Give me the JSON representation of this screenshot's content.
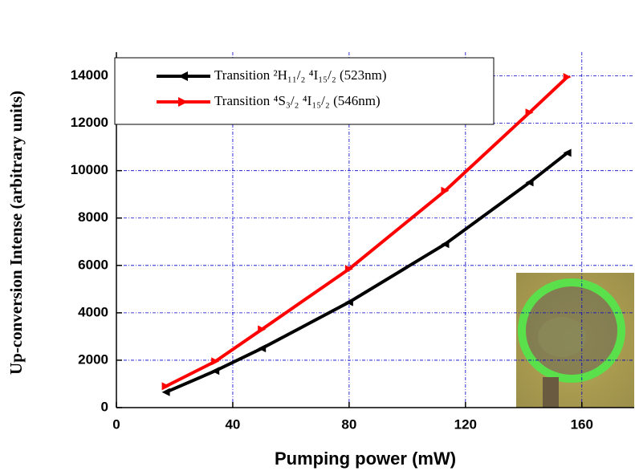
{
  "chart_data": {
    "type": "line",
    "x_label": "Pumping power (mW)",
    "y_label": "Up-conversion Intense (arbitrary units)",
    "xlim": [
      0,
      178
    ],
    "xticks": [
      0,
      40,
      80,
      120,
      160
    ],
    "ylim": [
      0,
      15000
    ],
    "yticks": [
      0,
      2000,
      4000,
      6000,
      8000,
      10000,
      12000,
      14000
    ],
    "grid": true,
    "grid_color": "#0000cc",
    "legend": "upper left",
    "series": [
      {
        "name": "Transition ²H₁₁/₂   ⁴I₁₅/₂ (523nm)",
        "color": "#000000",
        "marker": "triangle-left",
        "x": [
          17,
          34,
          50,
          80,
          113,
          142,
          155
        ],
        "values": [
          650,
          1550,
          2500,
          4450,
          6900,
          9500,
          10750
        ]
      },
      {
        "name": "Transition ⁴S₃/₂   ⁴I₁₅/₂ (546nm)",
        "color": "#ff0000",
        "marker": "triangle-right",
        "x": [
          17,
          34,
          50,
          80,
          113,
          142,
          155
        ],
        "values": [
          900,
          1950,
          3300,
          5850,
          9150,
          12450,
          13950
        ]
      }
    ]
  }
}
